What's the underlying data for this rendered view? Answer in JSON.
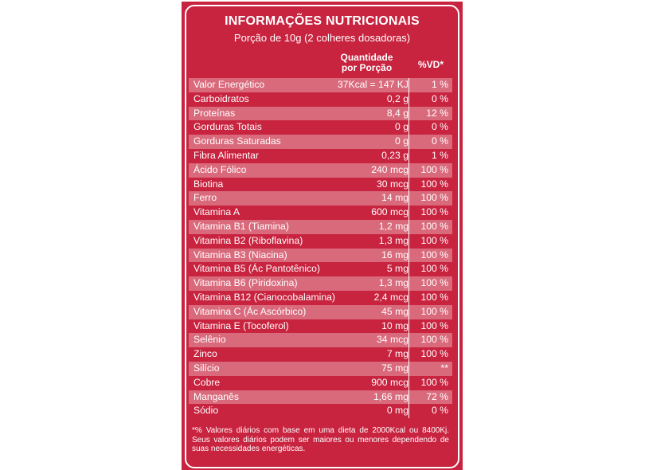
{
  "header": {
    "title": "INFORMAÇÕES NUTRICIONAIS",
    "serving": "Porção de 10g (2 colheres dosadoras)",
    "col_qty_line1": "Quantidade",
    "col_qty_line2": "por Porção",
    "col_vd": "%VD*"
  },
  "rows": [
    {
      "name": "Valor Energético",
      "qty": "37Kcal = 147 KJ",
      "vd": "1 %"
    },
    {
      "name": "Carboidratos",
      "qty": "0,2 g",
      "vd": "0 %"
    },
    {
      "name": "Proteínas",
      "qty": "8,4 g",
      "vd": "12 %"
    },
    {
      "name": "Gorduras Totais",
      "qty": "0 g",
      "vd": "0 %"
    },
    {
      "name": "Gorduras Saturadas",
      "qty": "0 g",
      "vd": "0 %"
    },
    {
      "name": "Fibra Alimentar",
      "qty": "0,23 g",
      "vd": "1 %"
    },
    {
      "name": "Ácido Fólico",
      "qty": "240 mcg",
      "vd": "100 %"
    },
    {
      "name": "Biotina",
      "qty": "30 mcg",
      "vd": "100 %"
    },
    {
      "name": "Ferro",
      "qty": "14 mg",
      "vd": "100 %"
    },
    {
      "name": "Vitamina A",
      "qty": "600 mcg",
      "vd": "100 %"
    },
    {
      "name": "Vitamina B1 (Tiamina)",
      "qty": "1,2 mg",
      "vd": "100 %"
    },
    {
      "name": "Vitamina B2 (Riboflavina)",
      "qty": "1,3 mg",
      "vd": "100 %"
    },
    {
      "name": "Vitamina B3 (Niacina)",
      "qty": "16 mg",
      "vd": "100 %"
    },
    {
      "name": "Vitamina B5 (Ác Pantotênico)",
      "qty": "5 mg",
      "vd": "100 %"
    },
    {
      "name": "Vitamina B6 (Piridoxina)",
      "qty": "1,3 mg",
      "vd": "100 %"
    },
    {
      "name": "Vitamina B12 (Cianocobalamina)",
      "qty": "2,4 mcg",
      "vd": "100 %"
    },
    {
      "name": "Vitamina C (Ác Ascórbico)",
      "qty": "45 mg",
      "vd": "100 %"
    },
    {
      "name": "Vitamina E (Tocoferol)",
      "qty": "10 mg",
      "vd": "100 %"
    },
    {
      "name": "Selênio",
      "qty": "34 mcg",
      "vd": "100 %"
    },
    {
      "name": "Zinco",
      "qty": "7 mg",
      "vd": "100 %"
    },
    {
      "name": "Silício",
      "qty": "75 mg",
      "vd": "**"
    },
    {
      "name": "Cobre",
      "qty": "900 mcg",
      "vd": "100 %"
    },
    {
      "name": "Manganês",
      "qty": "1,66 mg",
      "vd": "72 %"
    },
    {
      "name": "Sódio",
      "qty": "0 mg",
      "vd": "0 %"
    }
  ],
  "footnote": "*% Valores diários com base em uma dieta de 2000Kcal ou 8400Kj. Seus valores diários podem ser maiores ou menores dependendo de suas necessidades energéticas.",
  "colors": {
    "panel": "#c8233f",
    "stripe": "#d96a7c",
    "text": "#ffffff"
  }
}
